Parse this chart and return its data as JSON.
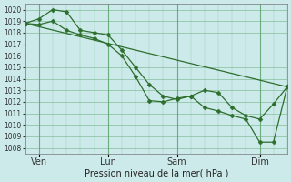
{
  "title": "",
  "xlabel": "Pression niveau de la mer( hPa )",
  "bg_color": "#cceaea",
  "grid_color": "#66aa77",
  "line_color": "#2d6e2d",
  "marker_color": "#2d6e2d",
  "ylim": [
    1007.5,
    1020.5
  ],
  "yticks": [
    1008,
    1009,
    1010,
    1011,
    1012,
    1013,
    1014,
    1015,
    1016,
    1017,
    1018,
    1019,
    1020
  ],
  "xtick_labels": [
    "Ven",
    "Lun",
    "Sam",
    "Dim"
  ],
  "xtick_positions": [
    0.5,
    3.0,
    5.5,
    8.5
  ],
  "xlim": [
    0,
    9.5
  ],
  "series": [
    {
      "x": [
        0.0,
        0.5,
        1.0,
        1.5,
        2.0,
        2.5,
        3.0,
        3.5,
        4.0,
        4.5,
        5.0,
        5.5,
        6.0,
        6.5,
        7.0,
        7.5,
        8.0,
        8.5,
        9.0,
        9.5
      ],
      "y": [
        1018.8,
        1019.2,
        1020.0,
        1019.8,
        1018.2,
        1018.0,
        1017.8,
        1016.5,
        1015.0,
        1013.5,
        1012.5,
        1012.2,
        1012.5,
        1013.0,
        1012.8,
        1011.5,
        1010.8,
        1010.5,
        1011.8,
        1013.3
      ],
      "marker": true
    },
    {
      "x": [
        0.0,
        0.5,
        1.0,
        1.5,
        2.0,
        2.5,
        3.0,
        3.5,
        4.0,
        4.5,
        5.0,
        5.5,
        6.0,
        6.5,
        7.0,
        7.5,
        8.0,
        8.5,
        9.0,
        9.5
      ],
      "y": [
        1018.8,
        1018.7,
        1019.0,
        1018.2,
        1017.8,
        1017.5,
        1017.0,
        1016.0,
        1014.2,
        1012.1,
        1012.0,
        1012.3,
        1012.5,
        1011.5,
        1011.2,
        1010.8,
        1010.5,
        1008.5,
        1008.5,
        1013.3
      ],
      "marker": true
    },
    {
      "x": [
        0.0,
        9.5
      ],
      "y": [
        1018.8,
        1013.3
      ],
      "marker": true
    }
  ],
  "series_markers": [
    [
      [
        0.0,
        0.5,
        1.0,
        1.5,
        2.0,
        2.5,
        3.0,
        3.5,
        4.0,
        4.5,
        5.0,
        5.5,
        6.0,
        6.5,
        7.0,
        7.5,
        8.0,
        8.5,
        9.0,
        9.5
      ],
      [
        1018.8,
        1019.2,
        1020.0,
        1019.8,
        1018.2,
        1018.0,
        1017.8,
        1016.5,
        1015.0,
        1013.5,
        1012.5,
        1012.2,
        1012.5,
        1013.0,
        1012.8,
        1011.5,
        1010.8,
        1010.5,
        1011.8,
        1013.3
      ]
    ],
    [
      [
        0.0,
        0.5,
        1.0,
        1.5,
        2.0,
        2.5,
        3.0,
        3.5,
        4.0,
        4.5,
        5.0,
        5.5,
        6.0,
        6.5,
        7.0,
        7.5,
        8.0,
        8.5,
        9.0,
        9.5
      ],
      [
        1018.8,
        1018.7,
        1019.0,
        1018.2,
        1017.8,
        1017.5,
        1017.0,
        1016.0,
        1014.2,
        1012.1,
        1012.0,
        1012.3,
        1012.5,
        1011.5,
        1011.2,
        1010.8,
        1010.5,
        1008.5,
        1008.5,
        1013.3
      ]
    ],
    [
      [
        0.0,
        9.5
      ],
      [
        1018.8,
        1013.3
      ]
    ]
  ],
  "ylabel_fontsize": 5.5,
  "xlabel_fontsize": 7.0,
  "tick_labelsize": 5.5,
  "linewidth": 0.9,
  "markersize": 2.5
}
